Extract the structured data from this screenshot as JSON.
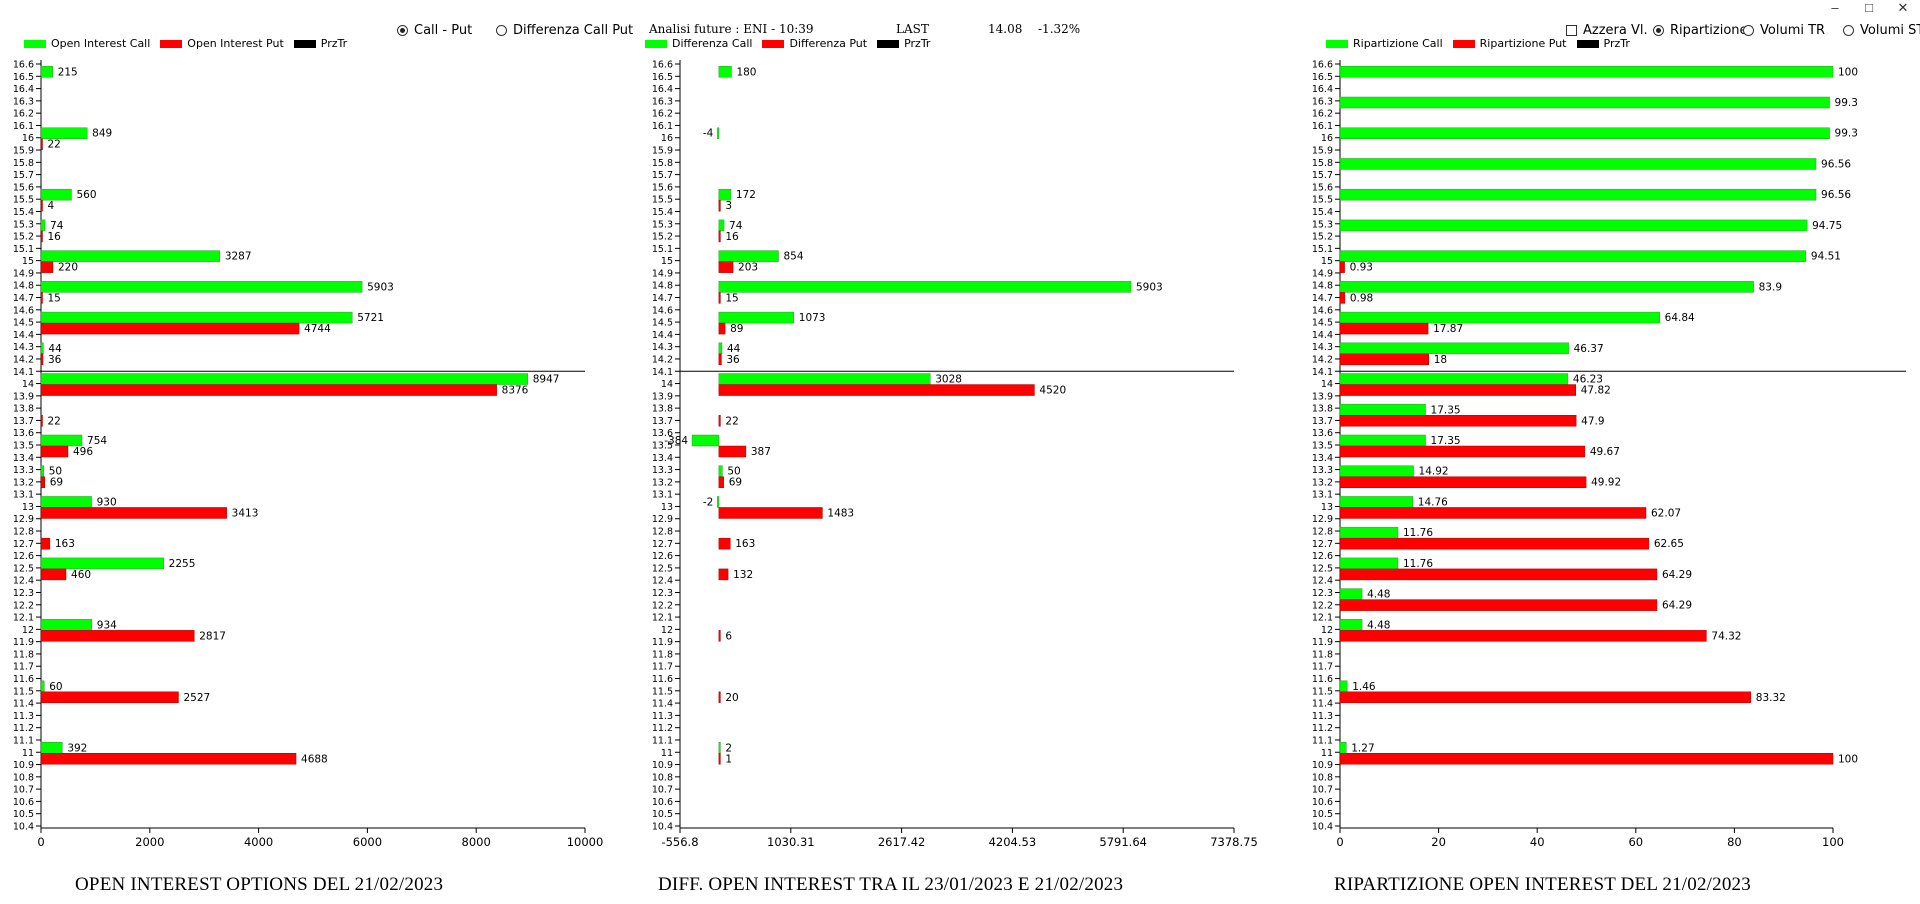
{
  "header": {
    "analysis_label": "Analisi future : ENI - 10:39",
    "last_label": "LAST",
    "last_value": "14.08",
    "last_change": "-1.32%"
  },
  "window_controls": {
    "minimize": "–",
    "maximize": "□",
    "close": "✕"
  },
  "options_left": [
    {
      "label": "Call - Put",
      "selected": true
    },
    {
      "label": "Differenza Call Put",
      "selected": false
    }
  ],
  "options_right": {
    "azzera": {
      "label": "Azzera Vl.",
      "checked": false
    },
    "radios": [
      {
        "label": "Ripartizione",
        "selected": true
      },
      {
        "label": "Volumi TR",
        "selected": false
      },
      {
        "label": "Volumi ST",
        "selected": false
      }
    ]
  },
  "colors": {
    "call": "#00ff00",
    "put": "#ff0000",
    "prz": "#000000"
  },
  "chart_data": [
    {
      "type": "bar",
      "orientation": "horizontal",
      "title": "OPEN INTEREST OPTIONS DEL 21/02/2023",
      "legend": [
        "Open Interest Call",
        "Open Interest Put",
        "PrzTr"
      ],
      "y_categories": [
        "16.6",
        "16.5",
        "16.4",
        "16.3",
        "16.2",
        "16.1",
        "16",
        "15.9",
        "15.8",
        "15.7",
        "15.6",
        "15.5",
        "15.4",
        "15.3",
        "15.2",
        "15.1",
        "15",
        "14.9",
        "14.8",
        "14.7",
        "14.6",
        "14.5",
        "14.4",
        "14.3",
        "14.2",
        "14.1",
        "14",
        "13.9",
        "13.8",
        "13.7",
        "13.6",
        "13.5",
        "13.4",
        "13.3",
        "13.2",
        "13.1",
        "13",
        "12.9",
        "12.8",
        "12.7",
        "12.6",
        "12.5",
        "12.4",
        "12.3",
        "12.2",
        "12.1",
        "12",
        "11.9",
        "11.8",
        "11.7",
        "11.6",
        "11.5",
        "11.4",
        "11.3",
        "11.2",
        "11.1",
        "11",
        "10.9",
        "10.8",
        "10.7",
        "10.6",
        "10.5",
        "10.4"
      ],
      "xlim": [
        0,
        10000
      ],
      "x_ticks": [
        "0",
        "2000",
        "4000",
        "6000",
        "8000",
        "10000"
      ],
      "price_line": 14.1,
      "bars": [
        {
          "strike": 16.5,
          "call": 215,
          "put": null
        },
        {
          "strike": 16.0,
          "call": 849,
          "put": 22
        },
        {
          "strike": 15.5,
          "call": 560,
          "put": 4
        },
        {
          "strike": 15.25,
          "call": 74,
          "put": 16
        },
        {
          "strike": 15.0,
          "call": 3287,
          "put": 220
        },
        {
          "strike": 14.75,
          "call": 5903,
          "put": 15
        },
        {
          "strike": 14.5,
          "call": 5721,
          "put": 4744
        },
        {
          "strike": 14.25,
          "call": 44,
          "put": 36
        },
        {
          "strike": 14.0,
          "call": 8947,
          "put": 8376
        },
        {
          "strike": 13.75,
          "call": null,
          "put": 22
        },
        {
          "strike": 13.5,
          "call": 754,
          "put": 496
        },
        {
          "strike": 13.25,
          "call": 50,
          "put": 69
        },
        {
          "strike": 13.0,
          "call": 930,
          "put": 3413
        },
        {
          "strike": 12.75,
          "call": null,
          "put": 163
        },
        {
          "strike": 12.5,
          "call": 2255,
          "put": 460
        },
        {
          "strike": 12.0,
          "call": 934,
          "put": 2817
        },
        {
          "strike": 11.5,
          "call": 60,
          "put": 2527
        },
        {
          "strike": 11.0,
          "call": 392,
          "put": 4688
        }
      ]
    },
    {
      "type": "bar",
      "orientation": "horizontal",
      "title": "DIFF. OPEN INTEREST TRA IL 23/01/2023 E 21/02/2023",
      "legend": [
        "Differenza Call",
        "Differenza Put",
        "PrzTr"
      ],
      "y_categories": [
        "16.6",
        "16.5",
        "16.4",
        "16.3",
        "16.2",
        "16.1",
        "16",
        "15.9",
        "15.8",
        "15.7",
        "15.6",
        "15.5",
        "15.4",
        "15.3",
        "15.2",
        "15.1",
        "15",
        "14.9",
        "14.8",
        "14.7",
        "14.6",
        "14.5",
        "14.4",
        "14.3",
        "14.2",
        "14.1",
        "14",
        "13.9",
        "13.8",
        "13.7",
        "13.6",
        "13.5",
        "13.4",
        "13.3",
        "13.2",
        "13.1",
        "13",
        "12.9",
        "12.8",
        "12.7",
        "12.6",
        "12.5",
        "12.4",
        "12.3",
        "12.2",
        "12.1",
        "12",
        "11.9",
        "11.8",
        "11.7",
        "11.6",
        "11.5",
        "11.4",
        "11.3",
        "11.2",
        "11.1",
        "11",
        "10.9",
        "10.8",
        "10.7",
        "10.6",
        "10.5",
        "10.4"
      ],
      "xlim": [
        -556.8,
        7378.75
      ],
      "x_ticks": [
        "-556.8",
        "1030.31",
        "2617.42",
        "4204.53",
        "5791.64",
        "7378.75"
      ],
      "price_line": 14.1,
      "bars": [
        {
          "strike": 16.5,
          "call": 180,
          "put": null
        },
        {
          "strike": 16.0,
          "call": -4,
          "put": null
        },
        {
          "strike": 15.5,
          "call": 172,
          "put": 3
        },
        {
          "strike": 15.25,
          "call": 74,
          "put": 16
        },
        {
          "strike": 15.0,
          "call": 854,
          "put": 203
        },
        {
          "strike": 14.75,
          "call": 5903,
          "put": 15
        },
        {
          "strike": 14.5,
          "call": 1073,
          "put": 89
        },
        {
          "strike": 14.25,
          "call": 44,
          "put": 36
        },
        {
          "strike": 14.0,
          "call": 3028,
          "put": 4520
        },
        {
          "strike": 13.75,
          "call": null,
          "put": 22
        },
        {
          "strike": 13.5,
          "call": -384,
          "put": 387
        },
        {
          "strike": 13.25,
          "call": 50,
          "put": 69
        },
        {
          "strike": 13.0,
          "call": -2,
          "put": 1483
        },
        {
          "strike": 12.75,
          "call": null,
          "put": 163
        },
        {
          "strike": 12.5,
          "call": null,
          "put": 132
        },
        {
          "strike": 12.0,
          "call": null,
          "put": 6
        },
        {
          "strike": 11.5,
          "call": null,
          "put": 20
        },
        {
          "strike": 11.0,
          "call": 2,
          "put": 1
        }
      ]
    },
    {
      "type": "bar",
      "orientation": "horizontal",
      "title": "RIPARTIZIONE OPEN INTEREST DEL 21/02/2023",
      "legend": [
        "Ripartizione Call",
        "Ripartizione Put",
        "PrzTr"
      ],
      "y_categories": [
        "16.6",
        "16.5",
        "16.4",
        "16.3",
        "16.2",
        "16.1",
        "16",
        "15.9",
        "15.8",
        "15.7",
        "15.6",
        "15.5",
        "15.4",
        "15.3",
        "15.2",
        "15.1",
        "15",
        "14.9",
        "14.8",
        "14.7",
        "14.6",
        "14.5",
        "14.4",
        "14.3",
        "14.2",
        "14.1",
        "14",
        "13.9",
        "13.8",
        "13.7",
        "13.6",
        "13.5",
        "13.4",
        "13.3",
        "13.2",
        "13.1",
        "13",
        "12.9",
        "12.8",
        "12.7",
        "12.6",
        "12.5",
        "12.4",
        "12.3",
        "12.2",
        "12.1",
        "12",
        "11.9",
        "11.8",
        "11.7",
        "11.6",
        "11.5",
        "11.4",
        "11.3",
        "11.2",
        "11.1",
        "11",
        "10.9",
        "10.8",
        "10.7",
        "10.6",
        "10.5",
        "10.4"
      ],
      "xlim": [
        0,
        100
      ],
      "x_ticks": [
        "0",
        "20",
        "40",
        "60",
        "80",
        "100"
      ],
      "price_line": 14.1,
      "bars": [
        {
          "strike": 16.5,
          "call": 100,
          "put": null
        },
        {
          "strike": 16.25,
          "call": 99.3,
          "put": null
        },
        {
          "strike": 16.0,
          "call": 99.3,
          "put": null
        },
        {
          "strike": 15.75,
          "call": 96.56,
          "put": null
        },
        {
          "strike": 15.5,
          "call": 96.56,
          "put": null
        },
        {
          "strike": 15.25,
          "call": 94.75,
          "put": null
        },
        {
          "strike": 15.0,
          "call": 94.51,
          "put": 0.93
        },
        {
          "strike": 14.75,
          "call": 83.9,
          "put": 0.98
        },
        {
          "strike": 14.5,
          "call": 64.84,
          "put": 17.87
        },
        {
          "strike": 14.25,
          "call": 46.37,
          "put": 18
        },
        {
          "strike": 14.0,
          "call": 46.23,
          "put": 47.82
        },
        {
          "strike": 13.75,
          "call": 17.35,
          "put": 47.9
        },
        {
          "strike": 13.5,
          "call": 17.35,
          "put": 49.67
        },
        {
          "strike": 13.25,
          "call": 14.92,
          "put": 49.92
        },
        {
          "strike": 13.0,
          "call": 14.76,
          "put": 62.07
        },
        {
          "strike": 12.75,
          "call": 11.76,
          "put": 62.65
        },
        {
          "strike": 12.5,
          "call": 11.76,
          "put": 64.29
        },
        {
          "strike": 12.25,
          "call": 4.48,
          "put": 64.29
        },
        {
          "strike": 12.0,
          "call": 4.48,
          "put": 74.32
        },
        {
          "strike": 11.5,
          "call": 1.46,
          "put": 83.32
        },
        {
          "strike": 11.0,
          "call": 1.27,
          "put": 100
        }
      ]
    }
  ]
}
